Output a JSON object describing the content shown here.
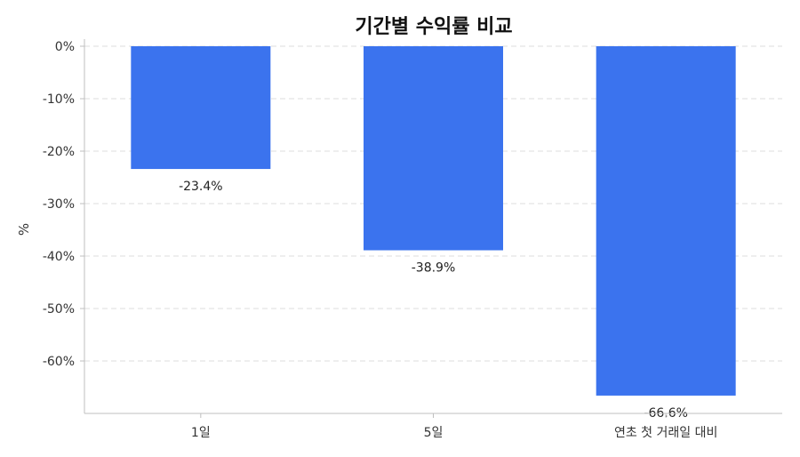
{
  "chart_data": {
    "type": "bar",
    "title": "기간별 수익률 비교",
    "xlabel": "",
    "ylabel": "%",
    "categories": [
      "1일",
      "5일",
      "연초 첫 거래일 대비"
    ],
    "values": [
      -23.4,
      -38.9,
      -66.6
    ],
    "data_labels": [
      "-23.4%",
      "-38.9%",
      "-66.6%"
    ],
    "ylim": [
      -70,
      0
    ],
    "yticks": [
      0,
      -10,
      -20,
      -30,
      -40,
      -50,
      -60
    ],
    "ytick_labels": [
      "0%",
      "-10%",
      "-20%",
      "-30%",
      "-40%",
      "-50%",
      "-60%"
    ],
    "grid": true,
    "bar_color": "#3b73ee"
  }
}
